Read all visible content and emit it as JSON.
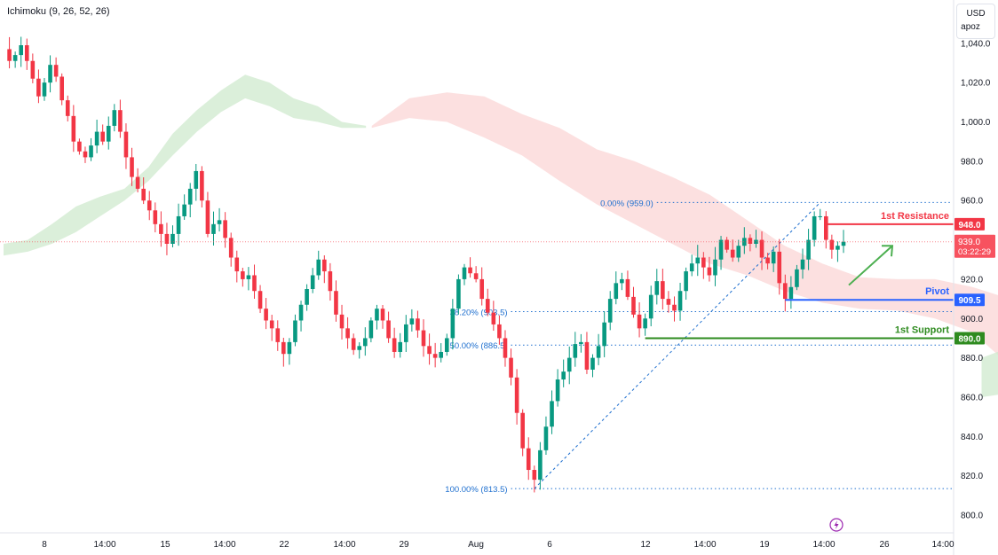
{
  "indicator": {
    "label": "Ichimoku (9, 26, 52, 26)"
  },
  "price_axis": {
    "currency": "USD",
    "unit": "apoz"
  },
  "colors": {
    "up": "#089981",
    "down": "#f23645",
    "resistance": "#f23645",
    "pivot": "#2962ff",
    "support": "#2e8b1f",
    "fib": "#1e6fcf",
    "cloud_bull": "#cfe9cd",
    "cloud_bear": "#fbd6d6",
    "arrow": "#4caf50",
    "current_price": "#f7525f",
    "flash": "#9c27b0"
  },
  "chart_data": {
    "type": "candlestick",
    "ylim": [
      791,
      1062
    ],
    "y_ticks": [
      "800.0",
      "820.0",
      "840.0",
      "860.0",
      "880.0",
      "900.0",
      "920.0",
      "940.0",
      "960.0",
      "980.0",
      "1,000.0",
      "1,020.0",
      "1,040.0"
    ],
    "x_ticks": [
      "8",
      "14:00",
      "15",
      "14:00",
      "22",
      "14:00",
      "29",
      "Aug",
      "6",
      "12",
      "14:00",
      "19",
      "14:00",
      "26",
      "14:00"
    ],
    "price_levels": [
      {
        "label": "1st Resistance",
        "value": 948.0,
        "axis_label": "948.0",
        "role": "resistance"
      },
      {
        "label": "Pivot",
        "value": 909.5,
        "axis_label": "909.5",
        "role": "pivot"
      },
      {
        "label": "1st Support",
        "value": 890.0,
        "axis_label": "890.0",
        "role": "support"
      }
    ],
    "current_price": {
      "value": 939.0,
      "label": "939.0",
      "countdown": "03:22:29"
    },
    "fibonacci": [
      {
        "label": "0.00% (959.0)",
        "value": 959.0
      },
      {
        "label": "38.20% (903.5)",
        "value": 903.5
      },
      {
        "label": "50.00% (886.5)",
        "value": 886.5
      },
      {
        "label": "100.00% (813.5)",
        "value": 813.5
      }
    ],
    "price_path": [
      1037,
      1031,
      1034,
      1039,
      1031,
      1022,
      1013,
      1020,
      1029,
      1023,
      1011,
      1003,
      990,
      985,
      982,
      988,
      995,
      990,
      998,
      1006,
      995,
      982,
      972,
      966,
      960,
      955,
      948,
      943,
      938,
      943,
      952,
      958,
      966,
      975,
      960,
      943,
      948,
      950,
      941,
      931,
      924,
      920,
      922,
      914,
      905,
      899,
      895,
      888,
      882,
      888,
      899,
      907,
      915,
      922,
      930,
      924,
      914,
      902,
      895,
      890,
      884,
      886,
      890,
      899,
      905,
      899,
      890,
      883,
      888,
      897,
      900,
      894,
      886,
      882,
      880,
      883,
      890,
      905,
      920,
      926,
      923,
      920,
      910,
      903,
      897,
      890,
      880,
      870,
      852,
      834,
      823,
      818,
      833,
      845,
      858,
      869,
      873,
      880,
      887,
      888,
      874,
      880,
      886,
      898,
      910,
      918,
      920,
      911,
      902,
      895,
      900,
      912,
      919,
      910,
      907,
      904,
      914,
      924,
      928,
      931,
      926,
      922,
      930,
      940,
      935,
      931,
      937,
      941,
      938,
      940,
      931,
      928,
      934,
      918,
      910,
      916,
      925,
      930,
      940,
      952,
      952,
      940,
      935,
      937,
      939
    ],
    "cloud_bull": {
      "x_range": [
        0,
        63
      ],
      "upper": [
        938,
        940,
        948,
        957,
        962,
        966,
        977,
        994,
        1006,
        1016,
        1024,
        1020,
        1012,
        1008,
        1000,
        998
      ],
      "lower": [
        932,
        934,
        938,
        944,
        952,
        960,
        970,
        983,
        995,
        1005,
        1012,
        1008,
        1002,
        1000,
        997,
        997
      ]
    },
    "cloud_bear": {
      "x_range": [
        64,
        188
      ],
      "upper": [
        998,
        1012,
        1015,
        1013,
        1004,
        997,
        986,
        980,
        972,
        963,
        950,
        937,
        928,
        921,
        920,
        920,
        916,
        910,
        903,
        896
      ],
      "lower": [
        997,
        1002,
        1000,
        992,
        983,
        970,
        958,
        948,
        938,
        928,
        922,
        914,
        908,
        905,
        904,
        900,
        893,
        876,
        866,
        870
      ]
    },
    "cloud_bull_2": {
      "x_range": [
        170,
        263
      ],
      "upper": [
        880,
        890,
        898,
        904,
        908,
        912,
        916,
        920,
        924,
        927,
        930
      ],
      "lower": [
        860,
        864,
        868,
        872,
        876,
        880,
        884,
        890,
        896,
        900,
        902
      ]
    }
  }
}
